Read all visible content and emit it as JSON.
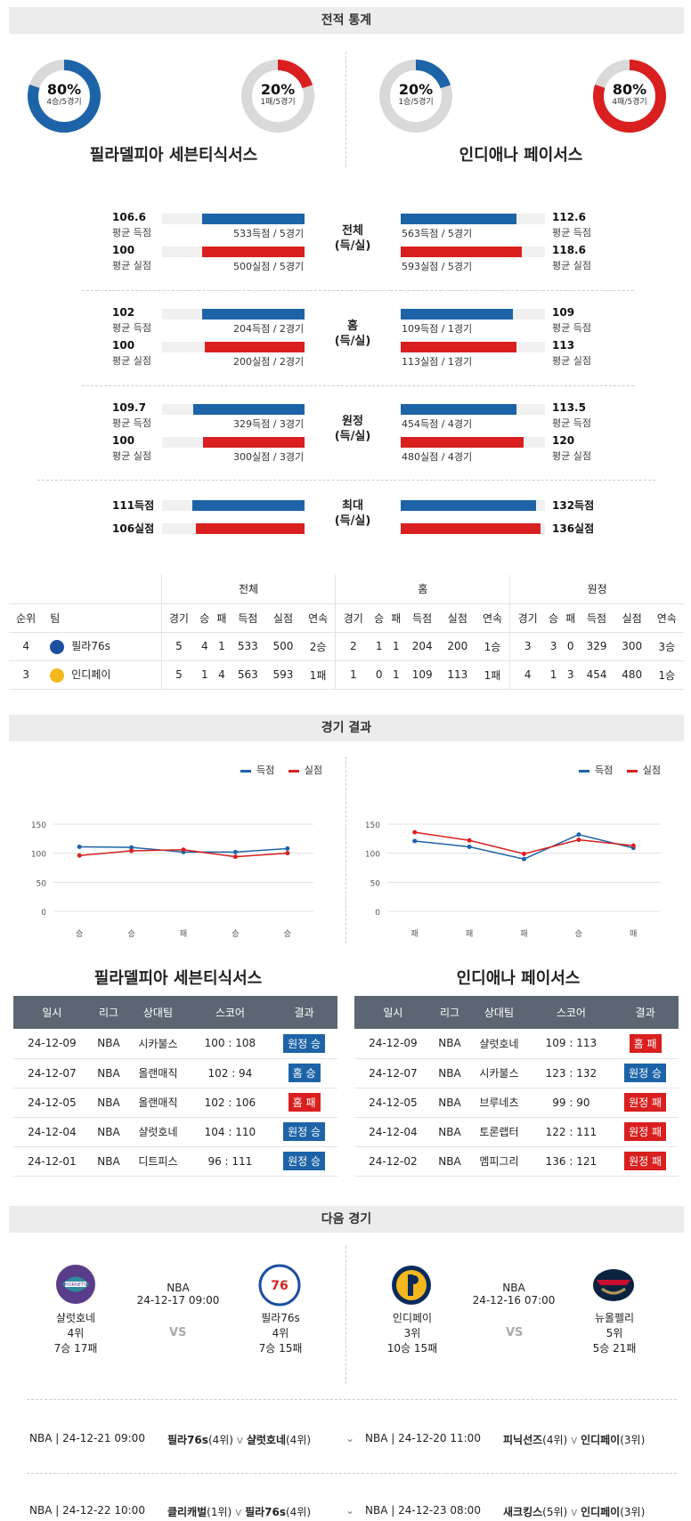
{
  "headers": {
    "stats": "전적 통계",
    "results": "경기 결과",
    "next": "다음 경기"
  },
  "colors": {
    "blue": "#1d63a8",
    "red": "#d91f1f",
    "track": "#d9d9d9"
  },
  "donuts": [
    {
      "pct": "80%",
      "sub": "4승/5경기",
      "value": 0.8,
      "color": "#1d63a8"
    },
    {
      "pct": "20%",
      "sub": "1패/5경기",
      "value": 0.2,
      "color": "#d91f1f"
    },
    {
      "pct": "20%",
      "sub": "1승/5경기",
      "value": 0.2,
      "color": "#1d63a8"
    },
    {
      "pct": "80%",
      "sub": "4패/5경기",
      "value": 0.8,
      "color": "#d91f1f"
    }
  ],
  "teams": {
    "left": "필라델피아 세븐티식서스",
    "right": "인디애나 페이서스"
  },
  "stats": [
    {
      "label": "전체\n(득/실)",
      "label1": "전체",
      "label2": "(득/실)",
      "l_score": "106.6",
      "l_score_lab": "평균 득점",
      "l_score_cap": "533득점 / 5경기",
      "l_score_frac": 0.72,
      "l_allow": "100",
      "l_allow_lab": "평균 실점",
      "l_allow_cap": "500실점 / 5경기",
      "l_allow_frac": 0.72,
      "r_score": "112.6",
      "r_score_lab": "평균 득점",
      "r_score_cap": "563득점 / 5경기",
      "r_score_frac": 0.8,
      "r_allow": "118.6",
      "r_allow_lab": "평균 실점",
      "r_allow_cap": "593실점 / 5경기",
      "r_allow_frac": 0.84
    },
    {
      "label1": "홈",
      "label2": "(득/실)",
      "l_score": "102",
      "l_score_lab": "평균 득점",
      "l_score_cap": "204득점 / 2경기",
      "l_score_frac": 0.72,
      "l_allow": "100",
      "l_allow_lab": "평균 실점",
      "l_allow_cap": "200실점 / 2경기",
      "l_allow_frac": 0.7,
      "r_score": "109",
      "r_score_lab": "평균 득점",
      "r_score_cap": "109득점 / 1경기",
      "r_score_frac": 0.78,
      "r_allow": "113",
      "r_allow_lab": "평균 실점",
      "r_allow_cap": "113실점 / 1경기",
      "r_allow_frac": 0.8
    },
    {
      "label1": "원정",
      "label2": "(득/실)",
      "l_score": "109.7",
      "l_score_lab": "평균 득점",
      "l_score_cap": "329득점 / 3경기",
      "l_score_frac": 0.78,
      "l_allow": "100",
      "l_allow_lab": "평균 실점",
      "l_allow_cap": "300실점 / 3경기",
      "l_allow_frac": 0.71,
      "r_score": "113.5",
      "r_score_lab": "평균 득점",
      "r_score_cap": "454득점 / 4경기",
      "r_score_frac": 0.8,
      "r_allow": "120",
      "r_allow_lab": "평균 실점",
      "r_allow_cap": "480실점 / 4경기",
      "r_allow_frac": 0.85
    }
  ],
  "max": {
    "label1": "최대",
    "label2": "(득/실)",
    "l_score": "111득점",
    "l_allow": "106실점",
    "r_score": "132득점",
    "r_allow": "136실점",
    "l_score_frac": 0.79,
    "l_allow_frac": 0.76,
    "r_score_frac": 0.94,
    "r_allow_frac": 0.97
  },
  "standings": {
    "groups": [
      "전체",
      "홈",
      "원정"
    ],
    "cols": [
      "순위",
      "팀",
      "경기",
      "승",
      "패",
      "득점",
      "실점",
      "연속",
      "경기",
      "승",
      "패",
      "득점",
      "실점",
      "연속",
      "경기",
      "승",
      "패",
      "득점",
      "실점",
      "연속"
    ],
    "rows": [
      {
        "rank": "4",
        "team": "필라76s",
        "logo": "#1d4fa0",
        "vals": [
          "5",
          "4",
          "1",
          "533",
          "500",
          "2승",
          "2",
          "1",
          "1",
          "204",
          "200",
          "1승",
          "3",
          "3",
          "0",
          "329",
          "300",
          "3승"
        ]
      },
      {
        "rank": "3",
        "team": "인디페이",
        "logo": "#f2b81d",
        "vals": [
          "5",
          "1",
          "4",
          "563",
          "593",
          "1패",
          "1",
          "0",
          "1",
          "109",
          "113",
          "1패",
          "4",
          "1",
          "3",
          "454",
          "480",
          "1승"
        ]
      }
    ]
  },
  "legend": {
    "score": "득점",
    "allow": "실점"
  },
  "chart_data": [
    {
      "type": "line",
      "categories": [
        "승",
        "승",
        "패",
        "승",
        "승"
      ],
      "ylim": [
        0,
        150
      ],
      "yticks": [
        0,
        50,
        100,
        150
      ],
      "series": [
        {
          "name": "득점",
          "color": "#1d63a8",
          "values": [
            111,
            110,
            102,
            102,
            108
          ]
        },
        {
          "name": "실점",
          "color": "#d91f1f",
          "values": [
            96,
            104,
            106,
            94,
            100
          ]
        }
      ]
    },
    {
      "type": "line",
      "categories": [
        "패",
        "패",
        "패",
        "승",
        "패"
      ],
      "ylim": [
        0,
        150
      ],
      "yticks": [
        0,
        50,
        100,
        150
      ],
      "series": [
        {
          "name": "득점",
          "color": "#1d63a8",
          "values": [
            121,
            111,
            90,
            132,
            109
          ]
        },
        {
          "name": "실점",
          "color": "#d91f1f",
          "values": [
            136,
            122,
            99,
            123,
            113
          ]
        }
      ]
    }
  ],
  "results_head": [
    "일시",
    "리그",
    "상대팀",
    "스코어",
    "결과"
  ],
  "results_left": [
    {
      "date": "24-12-09",
      "league": "NBA",
      "opp": "시카불스",
      "score": "100 : 108",
      "res": "원정 승",
      "color": "#1d63a8"
    },
    {
      "date": "24-12-07",
      "league": "NBA",
      "opp": "올랜매직",
      "score": "102 : 94",
      "res": "홈 승",
      "color": "#1d63a8"
    },
    {
      "date": "24-12-05",
      "league": "NBA",
      "opp": "올랜매직",
      "score": "102 : 106",
      "res": "홈 패",
      "color": "#d91f1f"
    },
    {
      "date": "24-12-04",
      "league": "NBA",
      "opp": "샬럿호네",
      "score": "104 : 110",
      "res": "원정 승",
      "color": "#1d63a8"
    },
    {
      "date": "24-12-01",
      "league": "NBA",
      "opp": "디트피스",
      "score": "96 : 111",
      "res": "원정 승",
      "color": "#1d63a8"
    }
  ],
  "results_right": [
    {
      "date": "24-12-09",
      "league": "NBA",
      "opp": "샬럿호네",
      "score": "109 : 113",
      "res": "홈 패",
      "color": "#d91f1f"
    },
    {
      "date": "24-12-07",
      "league": "NBA",
      "opp": "시카불스",
      "score": "123 : 132",
      "res": "원정 승",
      "color": "#1d63a8"
    },
    {
      "date": "24-12-05",
      "league": "NBA",
      "opp": "브루네츠",
      "score": "99 : 90",
      "res": "원정 패",
      "color": "#d91f1f"
    },
    {
      "date": "24-12-04",
      "league": "NBA",
      "opp": "토론랩터",
      "score": "122 : 111",
      "res": "원정 패",
      "color": "#d91f1f"
    },
    {
      "date": "24-12-02",
      "league": "NBA",
      "opp": "멤피그리",
      "score": "136 : 121",
      "res": "원정 패",
      "color": "#d91f1f"
    }
  ],
  "next": {
    "left": {
      "league": "NBA",
      "time": "24-12-17 09:00",
      "vs": "VS",
      "home": {
        "name": "샬럿호네",
        "rank": "4위",
        "rec": "7승 17패"
      },
      "away": {
        "name": "필라76s",
        "rank": "4위",
        "rec": "7승 15패"
      }
    },
    "right": {
      "league": "NBA",
      "time": "24-12-16 07:00",
      "vs": "VS",
      "home": {
        "name": "인디페이",
        "rank": "3위",
        "rec": "10승 15패"
      },
      "away": {
        "name": "뉴올펠리",
        "rank": "5위",
        "rec": "5승 21패"
      }
    }
  },
  "schedule": [
    {
      "l_info": "NBA | 24-12-21 09:00",
      "l_t1": "필라76s",
      "l_r1": "(4위)",
      "l_t2": "샬럿호네",
      "l_r2": "(4위)",
      "r_info": "NBA | 24-12-20 11:00",
      "r_t1": "피닉선즈",
      "r_r1": "(4위)",
      "r_t2": "인디페이",
      "r_r2": "(3위)"
    },
    {
      "l_info": "NBA | 24-12-22 10:00",
      "l_t1": "클리캐벌",
      "l_r1": "(1위)",
      "l_t2": "필라76s",
      "l_r2": "(4위)",
      "r_info": "NBA | 24-12-23 08:00",
      "r_t1": "새크킹스",
      "r_r1": "(5위)",
      "r_t2": "인디페이",
      "r_r2": "(3위)"
    }
  ]
}
